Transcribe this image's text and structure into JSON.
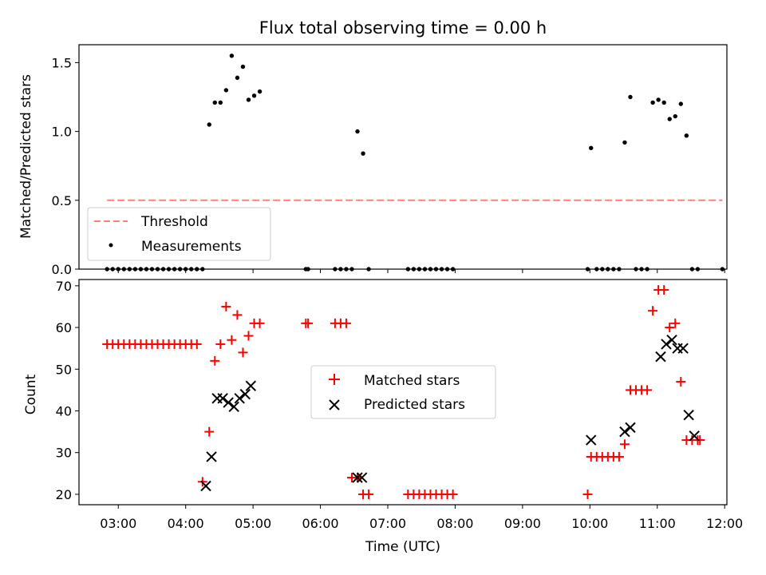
{
  "chart_data": [
    {
      "type": "scatter",
      "title": "Flux total observing time = 0.00 h",
      "xlabel": "",
      "ylabel": "Matched/Predicted stars",
      "xlim": [
        "02:25",
        "12:02"
      ],
      "ylim": [
        0.0,
        1.63
      ],
      "yticks": [
        0.0,
        0.5,
        1.0,
        1.5
      ],
      "ytick_labels": [
        "0.0",
        "0.5",
        "1.0",
        "1.5"
      ],
      "legend_position": "lower-left",
      "threshold": {
        "name": "Threshold",
        "color": "#ff7f7f",
        "style": "dashed",
        "value": 0.5,
        "x_start": "02:50",
        "x_end": "11:58"
      },
      "series": [
        {
          "name": "Measurements",
          "color": "#000000",
          "marker": "dot",
          "x": [
            "02:50",
            "02:55",
            "03:00",
            "03:05",
            "03:10",
            "03:15",
            "03:20",
            "03:25",
            "03:30",
            "03:35",
            "03:40",
            "03:45",
            "03:50",
            "03:55",
            "04:00",
            "04:05",
            "04:10",
            "04:15",
            "04:21",
            "04:26",
            "04:31",
            "04:36",
            "04:41",
            "04:46",
            "04:51",
            "04:56",
            "05:01",
            "05:06",
            "05:47",
            "05:49",
            "06:13",
            "06:18",
            "06:23",
            "06:28",
            "06:33",
            "06:38",
            "06:43",
            "07:18",
            "07:23",
            "07:28",
            "07:33",
            "07:38",
            "07:43",
            "07:48",
            "07:53",
            "07:58",
            "09:58",
            "10:01",
            "10:06",
            "10:11",
            "10:16",
            "10:21",
            "10:26",
            "10:31",
            "10:36",
            "10:41",
            "10:46",
            "10:51",
            "10:56",
            "11:01",
            "11:06",
            "11:11",
            "11:16",
            "11:21",
            "11:26",
            "11:31",
            "11:36",
            "11:58"
          ],
          "y": [
            0,
            0,
            0,
            0,
            0,
            0,
            0,
            0,
            0,
            0,
            0,
            0,
            0,
            0,
            0,
            0,
            0,
            0,
            1.05,
            1.21,
            1.21,
            1.3,
            1.55,
            1.39,
            1.47,
            1.23,
            1.26,
            1.29,
            0,
            0,
            0,
            0,
            0,
            0,
            1.0,
            0.84,
            0,
            0,
            0,
            0,
            0,
            0,
            0,
            0,
            0,
            0,
            0,
            0.88,
            0,
            0,
            0,
            0,
            0,
            0.92,
            1.25,
            0,
            0,
            0,
            1.21,
            1.23,
            1.21,
            1.09,
            1.11,
            1.2,
            0.97,
            0,
            0,
            0
          ]
        }
      ]
    },
    {
      "type": "scatter",
      "title": "",
      "xlabel": "Time (UTC)",
      "ylabel": "Count",
      "xlim": [
        "02:25",
        "12:02"
      ],
      "ylim": [
        17.5,
        71.5
      ],
      "yticks": [
        20,
        30,
        40,
        50,
        60,
        70
      ],
      "ytick_labels": [
        "20",
        "30",
        "40",
        "50",
        "60",
        "70"
      ],
      "xticks": [
        "03:00",
        "04:00",
        "05:00",
        "06:00",
        "07:00",
        "08:00",
        "09:00",
        "10:00",
        "11:00",
        "12:00"
      ],
      "legend_position": "center",
      "series": [
        {
          "name": "Matched stars",
          "color": "#ff0000",
          "marker": "plus",
          "x": [
            "02:50",
            "02:55",
            "03:00",
            "03:05",
            "03:10",
            "03:15",
            "03:20",
            "03:25",
            "03:30",
            "03:35",
            "03:40",
            "03:45",
            "03:50",
            "03:55",
            "04:00",
            "04:05",
            "04:10",
            "04:15",
            "04:21",
            "04:26",
            "04:31",
            "04:36",
            "04:41",
            "04:46",
            "04:51",
            "04:56",
            "05:01",
            "05:06",
            "05:47",
            "05:49",
            "06:13",
            "06:18",
            "06:23",
            "06:28",
            "06:33",
            "06:38",
            "06:43",
            "07:18",
            "07:23",
            "07:28",
            "07:33",
            "07:38",
            "07:43",
            "07:48",
            "07:53",
            "07:58",
            "09:58",
            "10:01",
            "10:06",
            "10:11",
            "10:16",
            "10:21",
            "10:26",
            "10:31",
            "10:36",
            "10:41",
            "10:46",
            "10:51",
            "10:56",
            "11:01",
            "11:06",
            "11:11",
            "11:16",
            "11:21",
            "11:26",
            "11:31",
            "11:36",
            "11:38"
          ],
          "y": [
            56,
            56,
            56,
            56,
            56,
            56,
            56,
            56,
            56,
            56,
            56,
            56,
            56,
            56,
            56,
            56,
            56,
            23,
            35,
            52,
            56,
            65,
            57,
            63,
            54,
            58,
            61,
            61,
            61,
            61,
            61,
            61,
            61,
            24,
            24,
            20,
            20,
            20,
            20,
            20,
            20,
            20,
            20,
            20,
            20,
            20,
            20,
            29,
            29,
            29,
            29,
            29,
            29,
            32,
            45,
            45,
            45,
            45,
            64,
            69,
            69,
            60,
            61,
            47,
            33,
            33,
            33,
            33
          ]
        },
        {
          "name": "Predicted stars",
          "color": "#000000",
          "marker": "x",
          "x": [
            "04:18",
            "04:23",
            "04:28",
            "04:33",
            "04:38",
            "04:43",
            "04:48",
            "04:53",
            "04:58",
            "06:33",
            "06:37",
            "10:01",
            "10:31",
            "10:36",
            "11:03",
            "11:08",
            "11:13",
            "11:18",
            "11:23",
            "11:28",
            "11:33"
          ],
          "y": [
            22,
            29,
            43,
            43,
            42,
            41,
            43,
            44,
            46,
            24,
            24,
            33,
            35,
            36,
            53,
            56,
            57,
            55,
            55,
            39,
            34
          ]
        }
      ]
    }
  ]
}
